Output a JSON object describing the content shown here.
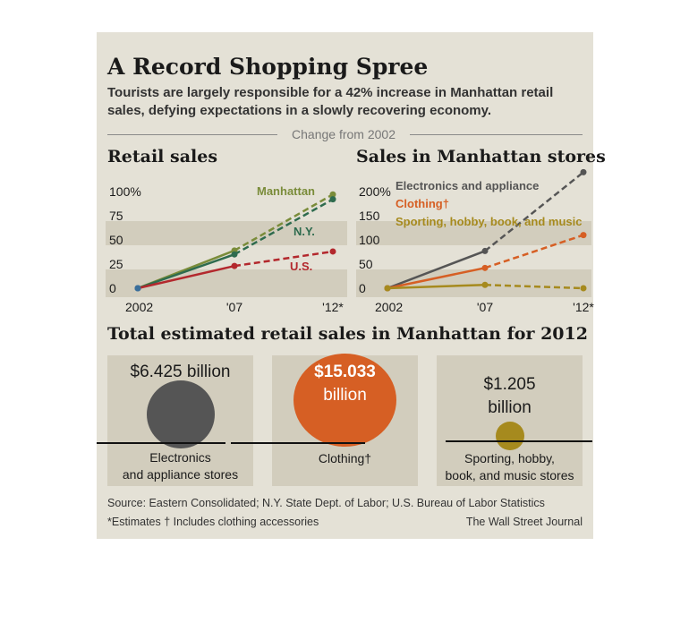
{
  "title": "A Record Shopping Spree",
  "subtitle": "Tourists are largely responsible for a 42% increase in Manhattan retail sales, defying expectations in a slowly recovering economy.",
  "change_label": "Change from 2002",
  "colors": {
    "panel": "#e4e1d6",
    "box": "#d2cdbd",
    "electronics": "#555555",
    "clothing": "#d65f24",
    "sporting": "#a68a1e",
    "manhattan": "#7a8c3a",
    "ny": "#2e6b4e",
    "us": "#b3282d",
    "manhattan_point": "#3a6e9a"
  },
  "chart_data": [
    {
      "type": "line",
      "title": "Retail sales",
      "x": [
        "2002",
        "'07",
        "'12*"
      ],
      "y_ticks": [
        "100%",
        "75",
        "50",
        "25",
        "0"
      ],
      "ylim": [
        0,
        100
      ],
      "series": [
        {
          "name": "Manhattan",
          "values": [
            0,
            39,
            97
          ],
          "color": "#7a8c3a"
        },
        {
          "name": "N.Y.",
          "values": [
            0,
            35,
            92
          ],
          "color": "#2e6b4e"
        },
        {
          "name": "U.S.",
          "values": [
            0,
            23,
            38
          ],
          "color": "#b3282d"
        }
      ],
      "grid": "bands"
    },
    {
      "type": "line",
      "title": "Sales in Manhattan stores",
      "x": [
        "2002",
        "'07",
        "'12*"
      ],
      "y_ticks": [
        "200%",
        "150",
        "100",
        "50",
        "0"
      ],
      "ylim": [
        0,
        200
      ],
      "series": [
        {
          "name": "Electronics and appliance",
          "values": [
            0,
            77,
            240
          ],
          "color": "#555555"
        },
        {
          "name": "Clothing†",
          "values": [
            0,
            42,
            110
          ],
          "color": "#d65f24"
        },
        {
          "name": "Sporting, hobby, book, and music",
          "values": [
            0,
            7,
            0
          ],
          "color": "#a68a1e"
        }
      ],
      "grid": "bands"
    },
    {
      "type": "bubble",
      "title": "Total estimated retail sales in Manhattan for 2012",
      "items": [
        {
          "value_text": "$6.425 billion",
          "value": 6.425,
          "label_lines": [
            "Electronics",
            "and appliance stores"
          ],
          "color": "#555555"
        },
        {
          "value_text_lines": [
            "$15.033",
            "billion"
          ],
          "value": 15.033,
          "label_lines": [
            "Clothing†"
          ],
          "color": "#d65f24"
        },
        {
          "value_text_lines": [
            "$1.205",
            "billion"
          ],
          "value": 1.205,
          "label_lines": [
            "Sporting, hobby,",
            "book, and music stores"
          ],
          "color": "#a68a1e"
        }
      ]
    }
  ],
  "footer": {
    "source": "Source: Eastern Consolidated; N.Y. State Dept. of Labor; U.S. Bureau of Labor Statistics",
    "notes": "*Estimates   † Includes clothing accessories",
    "credit": "The Wall Street Journal"
  }
}
